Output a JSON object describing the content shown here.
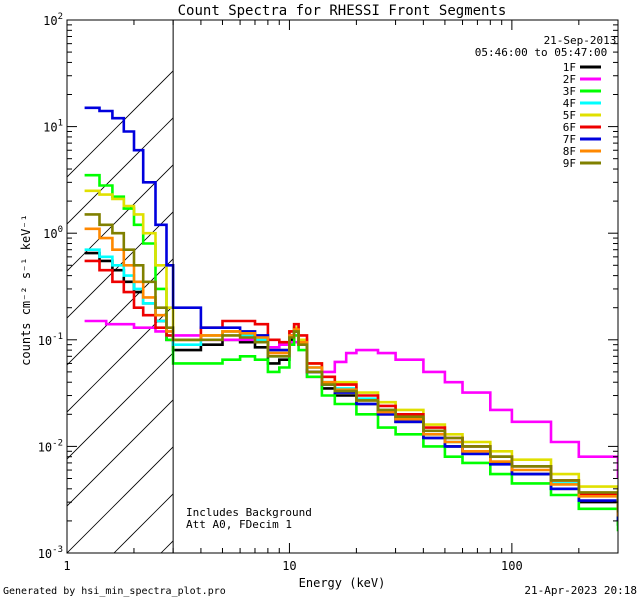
{
  "chart_data": {
    "type": "line",
    "title": "Count Spectra for RHESSI Front Segments",
    "xlabel": "Energy (keV)",
    "ylabel": "counts cm⁻² s⁻¹ keV⁻¹",
    "xscale": "log",
    "yscale": "log",
    "xlim": [
      1,
      300
    ],
    "ylim": [
      0.001,
      100
    ],
    "x_ticks": [
      {
        "v": 1,
        "label": "1"
      },
      {
        "v": 10,
        "label": "10"
      },
      {
        "v": 100,
        "label": "100"
      }
    ],
    "y_ticks": [
      {
        "v": 0.001,
        "base": "10",
        "exp": "-3"
      },
      {
        "v": 0.01,
        "base": "10",
        "exp": "-2"
      },
      {
        "v": 0.1,
        "base": "10",
        "exp": "-1"
      },
      {
        "v": 1,
        "base": "10",
        "exp": "0"
      },
      {
        "v": 10,
        "base": "10",
        "exp": "1"
      },
      {
        "v": 100,
        "base": "10",
        "exp": "2"
      }
    ],
    "date": "21-Sep-2013",
    "time_range": "05:46:00 to 05:47:00",
    "annotations": [
      "Includes Background",
      "Att A0, FDecim 1"
    ],
    "hatched_below_keV": 3,
    "series": [
      {
        "name": "1F",
        "color": "#000000",
        "x": [
          1.2,
          1.4,
          1.6,
          1.8,
          2.0,
          2.2,
          2.5,
          2.8,
          3.0,
          4,
          5,
          6,
          7,
          8,
          9,
          10,
          10.5,
          11,
          12,
          14,
          16,
          20,
          25,
          30,
          40,
          50,
          60,
          80,
          100,
          150,
          200,
          300
        ],
        "y": [
          0.65,
          0.55,
          0.45,
          0.35,
          0.28,
          0.22,
          0.15,
          0.1,
          0.08,
          0.09,
          0.1,
          0.095,
          0.085,
          0.06,
          0.065,
          0.1,
          0.12,
          0.09,
          0.05,
          0.035,
          0.03,
          0.025,
          0.02,
          0.017,
          0.012,
          0.01,
          0.009,
          0.007,
          0.0055,
          0.004,
          0.003,
          0.0018
        ]
      },
      {
        "name": "2F",
        "color": "#ff00ff",
        "x": [
          1.2,
          1.5,
          2,
          2.5,
          3,
          4,
          5,
          6,
          7,
          8,
          9,
          10,
          11,
          12,
          14,
          16,
          18,
          20,
          25,
          30,
          40,
          50,
          60,
          80,
          100,
          150,
          200,
          300
        ],
        "y": [
          0.15,
          0.14,
          0.13,
          0.12,
          0.11,
          0.1,
          0.1,
          0.1,
          0.095,
          0.085,
          0.09,
          0.095,
          0.1,
          0.045,
          0.05,
          0.062,
          0.075,
          0.08,
          0.075,
          0.065,
          0.05,
          0.04,
          0.032,
          0.022,
          0.017,
          0.011,
          0.008,
          0.005
        ]
      },
      {
        "name": "3F",
        "color": "#00ff00",
        "x": [
          1.2,
          1.4,
          1.6,
          1.8,
          2.0,
          2.2,
          2.5,
          2.8,
          3.0,
          4,
          5,
          6,
          7,
          8,
          9,
          10,
          10.5,
          11,
          12,
          14,
          16,
          20,
          25,
          30,
          40,
          50,
          60,
          80,
          100,
          150,
          200,
          300
        ],
        "y": [
          3.5,
          2.8,
          2.2,
          1.7,
          1.2,
          0.8,
          0.3,
          0.1,
          0.06,
          0.06,
          0.065,
          0.07,
          0.065,
          0.05,
          0.055,
          0.09,
          0.11,
          0.08,
          0.045,
          0.03,
          0.025,
          0.02,
          0.015,
          0.013,
          0.01,
          0.008,
          0.007,
          0.0055,
          0.0045,
          0.0035,
          0.0026,
          0.0016
        ]
      },
      {
        "name": "4F",
        "color": "#00ffff",
        "x": [
          1.2,
          1.4,
          1.6,
          1.8,
          2.0,
          2.2,
          2.5,
          2.8,
          3.0,
          4,
          5,
          6,
          7,
          8,
          9,
          10,
          10.5,
          11,
          12,
          14,
          16,
          20,
          25,
          30,
          40,
          50,
          60,
          80,
          100,
          150,
          200,
          300
        ],
        "y": [
          0.7,
          0.6,
          0.5,
          0.4,
          0.3,
          0.22,
          0.15,
          0.11,
          0.09,
          0.11,
          0.12,
          0.11,
          0.1,
          0.07,
          0.07,
          0.11,
          0.13,
          0.1,
          0.055,
          0.04,
          0.035,
          0.028,
          0.022,
          0.018,
          0.013,
          0.011,
          0.01,
          0.008,
          0.0065,
          0.0045,
          0.0035,
          0.0022
        ]
      },
      {
        "name": "5F",
        "color": "#e0e000",
        "x": [
          1.2,
          1.4,
          1.6,
          1.8,
          2.0,
          2.2,
          2.5,
          2.8,
          3.0,
          4,
          5,
          6,
          7,
          8,
          9,
          10,
          10.5,
          11,
          12,
          14,
          16,
          20,
          25,
          30,
          40,
          50,
          60,
          80,
          100,
          150,
          200,
          300
        ],
        "y": [
          2.5,
          2.3,
          2.1,
          1.8,
          1.5,
          1.0,
          0.5,
          0.2,
          0.1,
          0.11,
          0.12,
          0.12,
          0.11,
          0.08,
          0.08,
          0.12,
          0.13,
          0.1,
          0.06,
          0.045,
          0.04,
          0.032,
          0.026,
          0.022,
          0.016,
          0.013,
          0.011,
          0.009,
          0.0075,
          0.0055,
          0.0042,
          0.0028
        ]
      },
      {
        "name": "6F",
        "color": "#ee0000",
        "x": [
          1.2,
          1.4,
          1.6,
          1.8,
          2.0,
          2.2,
          2.5,
          2.8,
          3.0,
          4,
          5,
          6,
          7,
          8,
          9,
          10,
          10.5,
          11,
          12,
          14,
          16,
          20,
          25,
          30,
          40,
          50,
          60,
          80,
          100,
          150,
          200,
          300
        ],
        "y": [
          0.55,
          0.45,
          0.35,
          0.28,
          0.2,
          0.17,
          0.13,
          0.11,
          0.1,
          0.13,
          0.15,
          0.15,
          0.14,
          0.1,
          0.095,
          0.12,
          0.14,
          0.11,
          0.06,
          0.045,
          0.038,
          0.03,
          0.024,
          0.02,
          0.015,
          0.012,
          0.01,
          0.008,
          0.0065,
          0.0048,
          0.0036,
          0.0024
        ]
      },
      {
        "name": "7F",
        "color": "#0000dd",
        "x": [
          1.2,
          1.4,
          1.6,
          1.8,
          2.0,
          2.2,
          2.5,
          2.8,
          3.0,
          4,
          5,
          6,
          7,
          8,
          9,
          10,
          10.5,
          11,
          12,
          14,
          16,
          20,
          25,
          30,
          40,
          50,
          60,
          80,
          100,
          150,
          200,
          300
        ],
        "y": [
          15,
          14,
          12,
          9,
          6,
          3,
          1.2,
          0.5,
          0.2,
          0.13,
          0.13,
          0.12,
          0.11,
          0.08,
          0.08,
          0.11,
          0.12,
          0.09,
          0.05,
          0.038,
          0.032,
          0.025,
          0.02,
          0.017,
          0.012,
          0.01,
          0.0085,
          0.0068,
          0.0055,
          0.004,
          0.0031,
          0.002
        ]
      },
      {
        "name": "8F",
        "color": "#ff8800",
        "x": [
          1.2,
          1.4,
          1.6,
          1.8,
          2.0,
          2.2,
          2.5,
          2.8,
          3.0,
          4,
          5,
          6,
          7,
          8,
          9,
          10,
          10.5,
          11,
          12,
          14,
          16,
          20,
          25,
          30,
          40,
          50,
          60,
          80,
          100,
          150,
          200,
          300
        ],
        "y": [
          1.1,
          0.9,
          0.7,
          0.5,
          0.35,
          0.25,
          0.17,
          0.12,
          0.1,
          0.11,
          0.12,
          0.115,
          0.105,
          0.075,
          0.075,
          0.11,
          0.125,
          0.095,
          0.055,
          0.04,
          0.034,
          0.027,
          0.021,
          0.018,
          0.013,
          0.011,
          0.009,
          0.0072,
          0.006,
          0.0044,
          0.0034,
          0.0022
        ]
      },
      {
        "name": "9F",
        "color": "#808000",
        "x": [
          1.2,
          1.4,
          1.6,
          1.8,
          2.0,
          2.2,
          2.5,
          2.8,
          3.0,
          4,
          5,
          6,
          7,
          8,
          9,
          10,
          10.5,
          11,
          12,
          14,
          16,
          20,
          25,
          30,
          40,
          50,
          60,
          80,
          100,
          150,
          200,
          300
        ],
        "y": [
          1.5,
          1.2,
          1.0,
          0.7,
          0.5,
          0.35,
          0.2,
          0.13,
          0.1,
          0.1,
          0.11,
          0.105,
          0.095,
          0.07,
          0.07,
          0.105,
          0.12,
          0.09,
          0.05,
          0.038,
          0.033,
          0.027,
          0.022,
          0.019,
          0.014,
          0.012,
          0.01,
          0.008,
          0.0065,
          0.0048,
          0.0037,
          0.0024
        ]
      }
    ]
  },
  "footer": {
    "generated_by": "Generated by hsi_min_spectra_plot.pro",
    "timestamp": "21-Apr-2023 20:18"
  }
}
